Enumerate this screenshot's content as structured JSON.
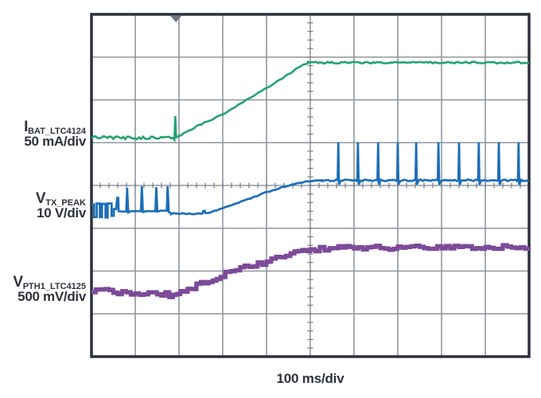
{
  "window": {
    "background": "#ffffff"
  },
  "channels": [
    {
      "symbol": "I",
      "subscript": "BAT_LTC4124",
      "scale": "50 mA/div",
      "color": "#23a273"
    },
    {
      "symbol": "V",
      "subscript": "TX_PEAK",
      "scale": "10 V/div",
      "color": "#1d6eb8"
    },
    {
      "symbol": "V",
      "subscript": "PTH1_LTC4125",
      "scale": "500 mV/div",
      "color": "#7d4a99"
    }
  ],
  "chart_data": {
    "type": "line",
    "title": "",
    "xlabel": "100 ms/div",
    "x_units_per_div": "100 ms",
    "grid": {
      "x_divisions": 10,
      "y_divisions": 8,
      "minor_ticks_per_division": 5,
      "line_color": "#9096a0",
      "tick_color": "#7d828c",
      "border_color": "#2b303a",
      "center_cross_ticks": true
    },
    "trigger_marker": {
      "x_div": 1.93,
      "color": "#70757f"
    },
    "series": [
      {
        "name": "I_BAT_LTC4124",
        "units_per_div": "50 mA",
        "color": "#23a273",
        "stroke_width": 2.6,
        "seed": 7,
        "segments": [
          {
            "points": [
              [
                0,
                2.88
              ],
              [
                1.86,
                2.89
              ]
            ],
            "noise": 0.035,
            "step": 0.045
          },
          {
            "points": [
              [
                1.86,
                2.89
              ],
              [
                1.895,
                2.93
              ],
              [
                1.915,
                2.38
              ],
              [
                1.935,
                2.9
              ]
            ]
          },
          {
            "points": [
              [
                1.935,
                2.88
              ],
              [
                2.1,
                2.79
              ],
              [
                2.4,
                2.62
              ],
              [
                2.7,
                2.48
              ],
              [
                3.0,
                2.34
              ],
              [
                3.35,
                2.12
              ],
              [
                3.7,
                1.9
              ],
              [
                4.05,
                1.7
              ],
              [
                4.35,
                1.5
              ],
              [
                4.6,
                1.33
              ],
              [
                4.8,
                1.19
              ],
              [
                4.95,
                1.135
              ]
            ],
            "noise": 0.014,
            "step": 0.06
          },
          {
            "points": [
              [
                4.95,
                1.13
              ],
              [
                10,
                1.13
              ]
            ],
            "noise": 0.02,
            "step": 0.045
          }
        ]
      },
      {
        "name": "V_TX_PEAK",
        "units_per_div": "10 V",
        "color": "#1d6eb8",
        "stroke_width": 2.7,
        "seed": 3,
        "segments": [
          {
            "points": [
              [
                0,
                4.44
              ],
              [
                0.06,
                4.44
              ],
              [
                0.06,
                4.74
              ],
              [
                0.12,
                4.74
              ],
              [
                0.12,
                4.42
              ],
              [
                0.19,
                4.42
              ],
              [
                0.19,
                4.74
              ],
              [
                0.24,
                4.74
              ],
              [
                0.24,
                4.43
              ],
              [
                0.32,
                4.43
              ],
              [
                0.32,
                4.75
              ],
              [
                0.37,
                4.75
              ],
              [
                0.37,
                4.42
              ],
              [
                0.46,
                4.42
              ],
              [
                0.46,
                4.71
              ],
              [
                0.51,
                4.71
              ],
              [
                0.51,
                4.55
              ],
              [
                0.565,
                4.55
              ],
              [
                0.585,
                4.29
              ],
              [
                0.61,
                4.29
              ],
              [
                0.62,
                4.6
              ],
              [
                0.7,
                4.61
              ]
            ]
          },
          {
            "points": [
              [
                0.7,
                4.61
              ],
              [
                0.795,
                4.61
              ],
              [
                0.815,
                4.06
              ],
              [
                0.84,
                4.63
              ],
              [
                0.9,
                4.6
              ],
              [
                1.13,
                4.6
              ],
              [
                1.15,
                4.02
              ],
              [
                1.175,
                4.62
              ],
              [
                1.25,
                4.6
              ],
              [
                1.46,
                4.6
              ],
              [
                1.48,
                4.04
              ],
              [
                1.505,
                4.61
              ],
              [
                1.58,
                4.59
              ],
              [
                1.72,
                4.59
              ],
              [
                1.74,
                4.02
              ],
              [
                1.765,
                4.62
              ],
              [
                1.82,
                4.65
              ]
            ]
          },
          {
            "points": [
              [
                1.82,
                4.66
              ],
              [
                2.53,
                4.665
              ]
            ],
            "noise": 0.02,
            "step": 0.05
          },
          {
            "points": [
              [
                2.53,
                4.665
              ],
              [
                2.55,
                4.6
              ],
              [
                2.59,
                4.6
              ],
              [
                2.6,
                4.65
              ],
              [
                2.8,
                4.6
              ],
              [
                3.0,
                4.53
              ],
              [
                3.5,
                4.35
              ],
              [
                4.0,
                4.16
              ],
              [
                4.5,
                4.0
              ],
              [
                4.9,
                3.91
              ],
              [
                5.27,
                3.88
              ]
            ],
            "noise": 0.012,
            "step": 0.07
          },
          {
            "spike_train": {
              "from": 5.27,
              "to": 10,
              "base": 3.88,
              "top": 2.99,
              "dip": 3.98,
              "noise": 0.018,
              "spikes": [
                5.64,
                6.09,
                6.55,
                7.0,
                7.42,
                7.93,
                8.4,
                8.85,
                9.31,
                9.76
              ]
            }
          }
        ]
      },
      {
        "name": "V_PTH1_LTC4125",
        "units_per_div": "500 mV",
        "color": "#7d4a99",
        "stroke_width": 5.5,
        "seed": 11,
        "segments": [
          {
            "points": [
              [
                0,
                6.46
              ],
              [
                0.4,
                6.47
              ],
              [
                0.8,
                6.51
              ],
              [
                1.2,
                6.53
              ],
              [
                1.5,
                6.52
              ],
              [
                1.78,
                6.56
              ],
              [
                1.95,
                6.53
              ],
              [
                2.2,
                6.43
              ],
              [
                2.5,
                6.29
              ],
              [
                2.95,
                6.11
              ],
              [
                3.4,
                5.94
              ],
              [
                4.0,
                5.78
              ],
              [
                4.55,
                5.61
              ],
              [
                5.0,
                5.51
              ],
              [
                5.55,
                5.45
              ],
              [
                6.0,
                5.46
              ],
              [
                6.5,
                5.43
              ],
              [
                7.0,
                5.47
              ],
              [
                7.5,
                5.44
              ],
              [
                8.0,
                5.46
              ],
              [
                8.5,
                5.43
              ],
              [
                9.0,
                5.47
              ],
              [
                9.5,
                5.44
              ],
              [
                10,
                5.45
              ]
            ],
            "noise": 0.05,
            "step": 0.1,
            "blocky": true
          }
        ]
      }
    ]
  }
}
